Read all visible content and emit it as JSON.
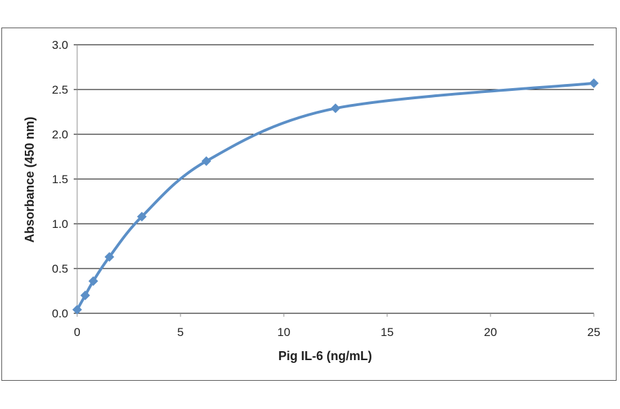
{
  "chart_data": {
    "type": "line",
    "title": "",
    "xlabel": "Pig IL-6 (ng/mL)",
    "ylabel": "Absorbance  (450  nm)",
    "xlim": [
      0,
      25
    ],
    "ylim": [
      0,
      3.0
    ],
    "x_ticks": [
      "0",
      "5",
      "10",
      "15",
      "20",
      "25"
    ],
    "y_ticks": [
      "0.0",
      "0.5",
      "1.0",
      "1.5",
      "2.0",
      "2.5",
      "3.0"
    ],
    "grid": "horizontal",
    "legend": "none",
    "series": [
      {
        "color": "#5b8fc7",
        "marker": "diamond",
        "smooth": true,
        "x": [
          0,
          0.39,
          0.78,
          1.56,
          3.13,
          6.25,
          12.5,
          25
        ],
        "y": [
          0.04,
          0.2,
          0.36,
          0.63,
          1.08,
          1.7,
          2.29,
          2.57
        ]
      }
    ]
  }
}
